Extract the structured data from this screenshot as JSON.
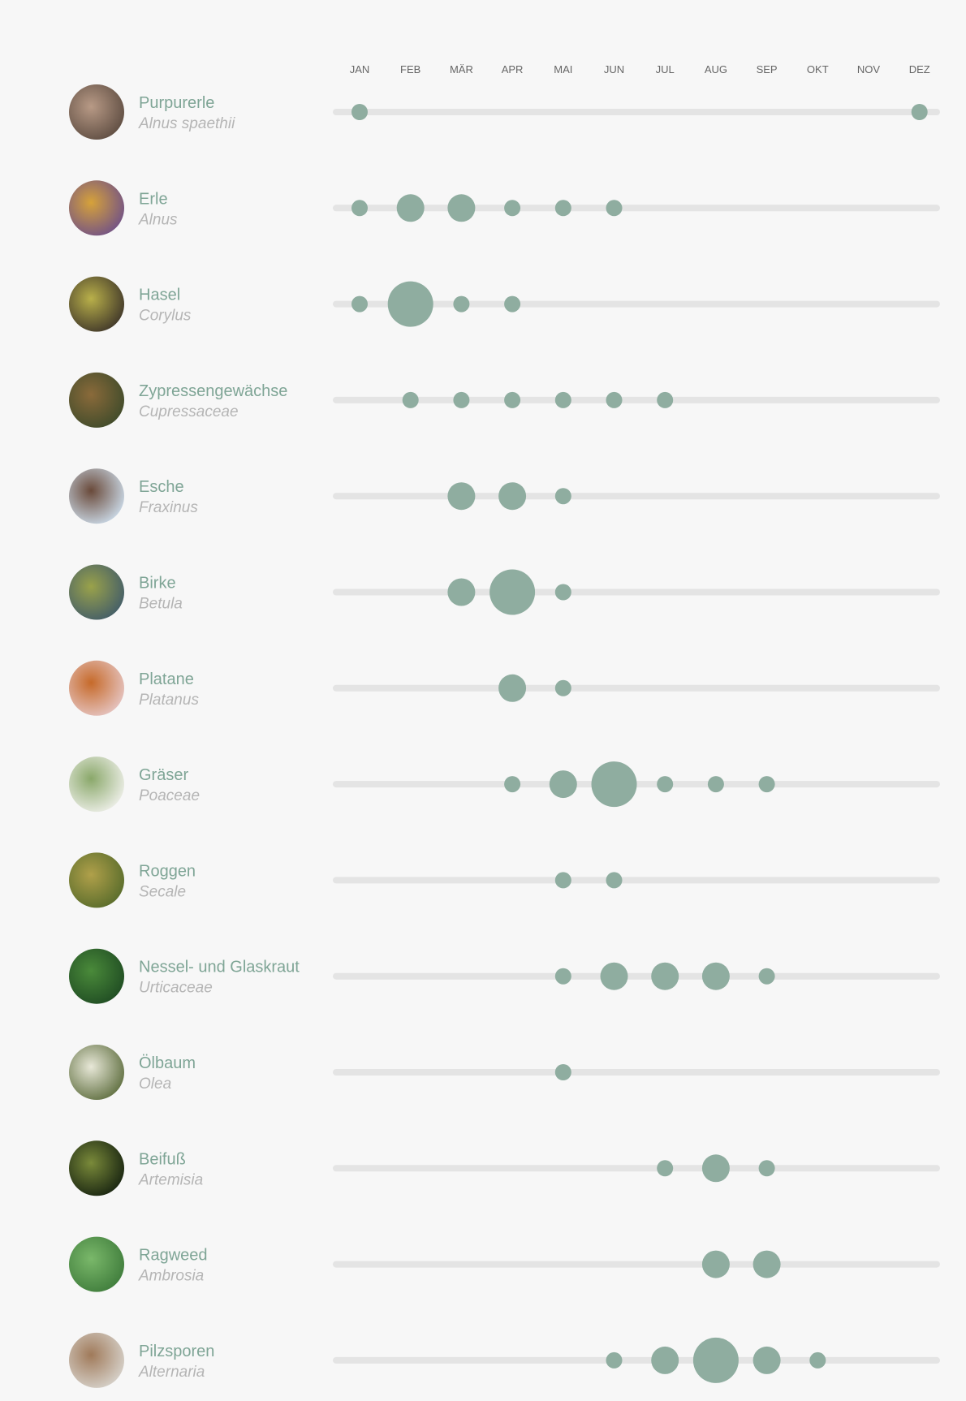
{
  "colors": {
    "accent": "#8fada0",
    "track": "#e4e4e4",
    "label": "#7fa596",
    "latin": "#b5b5b5",
    "month": "#666666"
  },
  "chart_data": {
    "type": "scatter",
    "months": [
      "JAN",
      "FEB",
      "MÄR",
      "APR",
      "MAI",
      "JUN",
      "JUL",
      "AUG",
      "SEP",
      "OKT",
      "NOV",
      "DEZ"
    ],
    "note": "values: 1 = small, 2 = medium, 3 = large dot; 0 = none",
    "series": [
      {
        "name": "Purpurerle",
        "latin": "Alnus spaethii",
        "icon": "alder-catkin-photo",
        "values": [
          1,
          0,
          0,
          0,
          0,
          0,
          0,
          0,
          0,
          0,
          0,
          1
        ]
      },
      {
        "name": "Erle",
        "latin": "Alnus",
        "icon": "alder-photo",
        "values": [
          1,
          2,
          2,
          1,
          1,
          1,
          0,
          0,
          0,
          0,
          0,
          0
        ]
      },
      {
        "name": "Hasel",
        "latin": "Corylus",
        "icon": "hazel-photo",
        "values": [
          1,
          3,
          1,
          1,
          0,
          0,
          0,
          0,
          0,
          0,
          0,
          0
        ]
      },
      {
        "name": "Zypressengewächse",
        "latin": "Cupressaceae",
        "icon": "cypress-photo",
        "values": [
          0,
          1,
          1,
          1,
          1,
          1,
          1,
          0,
          0,
          0,
          0,
          0
        ]
      },
      {
        "name": "Esche",
        "latin": "Fraxinus",
        "icon": "ash-photo",
        "values": [
          0,
          0,
          2,
          2,
          1,
          0,
          0,
          0,
          0,
          0,
          0,
          0
        ]
      },
      {
        "name": "Birke",
        "latin": "Betula",
        "icon": "birch-photo",
        "values": [
          0,
          0,
          2,
          3,
          1,
          0,
          0,
          0,
          0,
          0,
          0,
          0
        ]
      },
      {
        "name": "Platane",
        "latin": "Platanus",
        "icon": "plane-tree-photo",
        "values": [
          0,
          0,
          0,
          2,
          1,
          0,
          0,
          0,
          0,
          0,
          0,
          0
        ]
      },
      {
        "name": "Gräser",
        "latin": "Poaceae",
        "icon": "grass-photo",
        "values": [
          0,
          0,
          0,
          1,
          2,
          3,
          1,
          1,
          1,
          0,
          0,
          0
        ]
      },
      {
        "name": "Roggen",
        "latin": "Secale",
        "icon": "rye-photo",
        "values": [
          0,
          0,
          0,
          0,
          1,
          1,
          0,
          0,
          0,
          0,
          0,
          0
        ]
      },
      {
        "name": "Nessel- und Glaskraut",
        "latin": "Urticaceae",
        "icon": "nettle-photo",
        "values": [
          0,
          0,
          0,
          0,
          1,
          2,
          2,
          2,
          1,
          0,
          0,
          0
        ]
      },
      {
        "name": "Ölbaum",
        "latin": "Olea",
        "icon": "olive-photo",
        "values": [
          0,
          0,
          0,
          0,
          1,
          0,
          0,
          0,
          0,
          0,
          0,
          0
        ]
      },
      {
        "name": "Beifuß",
        "latin": "Artemisia",
        "icon": "mugwort-photo",
        "values": [
          0,
          0,
          0,
          0,
          0,
          0,
          1,
          2,
          1,
          0,
          0,
          0
        ]
      },
      {
        "name": "Ragweed",
        "latin": "Ambrosia",
        "icon": "ragweed-photo",
        "values": [
          0,
          0,
          0,
          0,
          0,
          0,
          0,
          2,
          2,
          0,
          0,
          0
        ]
      },
      {
        "name": "Pilzsporen",
        "latin": "Alternaria",
        "icon": "spores-photo",
        "values": [
          0,
          0,
          0,
          0,
          0,
          1,
          2,
          3,
          2,
          1,
          0,
          0
        ]
      }
    ]
  }
}
